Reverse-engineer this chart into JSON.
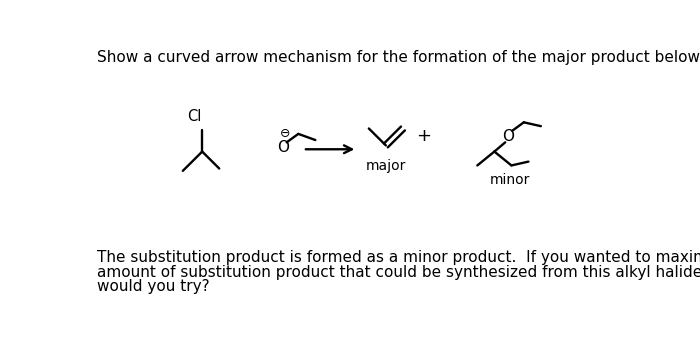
{
  "title_text": "Show a curved arrow mechanism for the formation of the major product below.",
  "bottom_text_line1": "The substitution product is formed as a minor product.  If you wanted to maximize the",
  "bottom_text_line2": "amount of substitution product that could be synthesized from this alkyl halide, what",
  "bottom_text_line3": "would you try?",
  "major_label": "major",
  "minor_label": "minor",
  "plus_sign": "+",
  "bg_color": "#ffffff",
  "text_color": "#000000",
  "line_color": "#000000",
  "title_fontsize": 11,
  "label_fontsize": 10,
  "body_fontsize": 11
}
